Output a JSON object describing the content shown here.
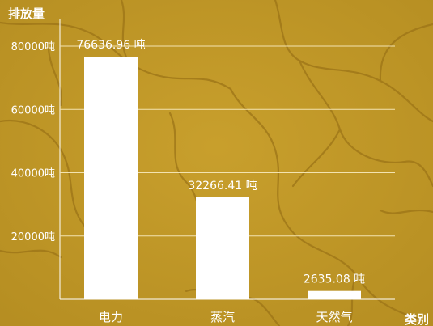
{
  "chart_data": {
    "type": "bar",
    "title": "",
    "ylabel": "排放量",
    "xlabel": "类别",
    "ylim": [
      0,
      80000
    ],
    "yticks": [
      20000,
      40000,
      60000,
      80000
    ],
    "ytick_labels": [
      "20000吨",
      "40000吨",
      "60000吨",
      "80000吨"
    ],
    "categories": [
      "电力",
      "蒸汽",
      "天然气"
    ],
    "values": [
      76636.96,
      32266.41,
      2635.08
    ],
    "value_labels": [
      "76636.96 吨",
      "32266.41 吨",
      "2635.08 吨"
    ],
    "grid": true,
    "legend": "none"
  },
  "colors": {
    "background": "#c39a28",
    "bar": "#ffffff",
    "text": "#ffffff",
    "grid": "#f3e3b0",
    "crack": "#9c7417"
  }
}
